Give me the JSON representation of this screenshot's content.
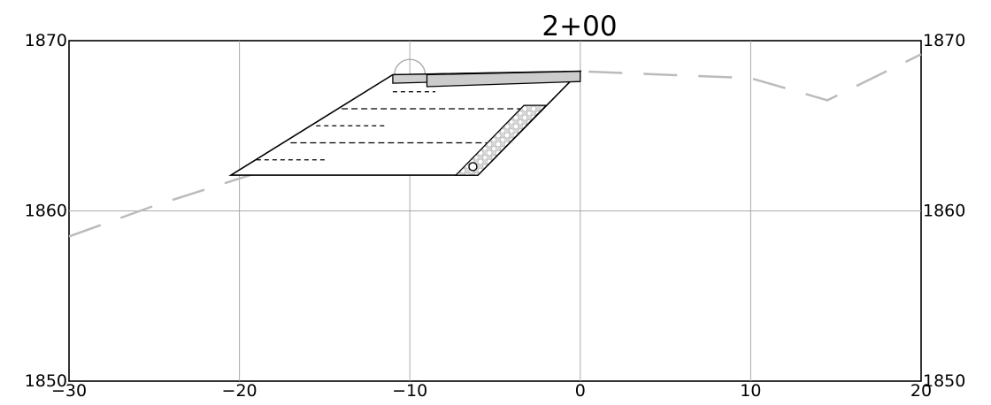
{
  "section": {
    "title": "2+00"
  },
  "chart_data": {
    "type": "cross-section",
    "title": "2+00",
    "x_ticks": [
      -30,
      -20,
      -10,
      0,
      10,
      20
    ],
    "x_tick_labels": [
      "−30",
      "−20",
      "−10",
      "0",
      "10",
      "20"
    ],
    "y_ticks": [
      1850,
      1860,
      1870
    ],
    "y_tick_labels": [
      "1850",
      "1860",
      "1870"
    ],
    "xlim": [
      -30,
      20
    ],
    "ylim": [
      1850,
      1870
    ],
    "grid": true,
    "existing_ground": {
      "style": "dashed",
      "color": "#bbbbbb",
      "points": [
        [
          -30,
          1858.5
        ],
        [
          -25,
          1860.3
        ],
        [
          -15,
          1863.5
        ],
        [
          -10,
          1865.5
        ],
        [
          -6.5,
          1867.3
        ],
        [
          0,
          1868.2
        ],
        [
          10,
          1867.8
        ],
        [
          14.5,
          1866.5
        ],
        [
          20,
          1869.2
        ]
      ]
    },
    "structure": {
      "outline": [
        [
          -20.5,
          1862.1
        ],
        [
          -6.0,
          1862.1
        ],
        [
          0,
          1868.2
        ],
        [
          -11.0,
          1868.0
        ]
      ],
      "top_slabs": [
        {
          "points": [
            [
              -11.0,
              1868.0
            ],
            [
              0,
              1868.2
            ],
            [
              0,
              1867.8
            ],
            [
              -11.0,
              1867.5
            ]
          ],
          "color": "#cfcfcf"
        },
        {
          "points": [
            [
              -9.0,
              1868.0
            ],
            [
              0,
              1868.2
            ],
            [
              0,
              1867.6
            ],
            [
              -9.0,
              1867.3
            ]
          ],
          "color": "#cccccc"
        }
      ],
      "dome": {
        "center": [
          -10.0,
          1868.0
        ],
        "radius": 0.9,
        "color": "#aaaaaa"
      },
      "gravel_drain": [
        [
          -7.3,
          1862.1
        ],
        [
          -6.0,
          1862.1
        ],
        [
          -2.0,
          1866.2
        ],
        [
          -3.3,
          1866.2
        ]
      ],
      "pipe": {
        "center": [
          -6.3,
          1862.6
        ],
        "radius": 0.25
      },
      "lifts": [
        {
          "x1": -11.0,
          "x2": -8.5,
          "y": 1867.0,
          "style": "short-dash"
        },
        {
          "x1": -14.0,
          "x2": -3.5,
          "y": 1866.0,
          "style": "long-dash"
        },
        {
          "x1": -15.5,
          "x2": -11.5,
          "y": 1865.0,
          "style": "short-dash"
        },
        {
          "x1": -17.0,
          "x2": -5.5,
          "y": 1864.0,
          "style": "long-dash"
        },
        {
          "x1": -19.0,
          "x2": -15.0,
          "y": 1863.0,
          "style": "short-dash"
        }
      ]
    }
  }
}
